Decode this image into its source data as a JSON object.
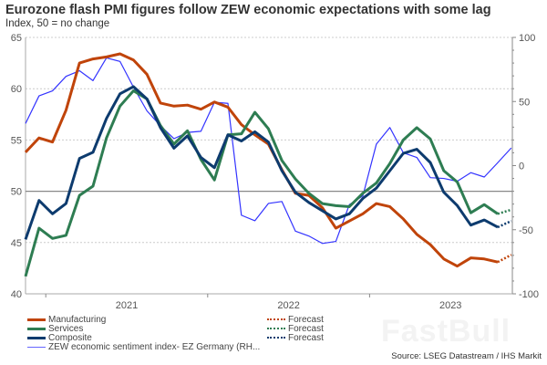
{
  "chart_data": {
    "type": "line",
    "title": "Eurozone flash PMI figures follow ZEW economic expectations with some lag",
    "subtitle": "Index, 50 = no change",
    "x": [
      "2020-11",
      "2020-12",
      "2021-01",
      "2021-02",
      "2021-03",
      "2021-04",
      "2021-05",
      "2021-06",
      "2021-07",
      "2021-08",
      "2021-09",
      "2021-10",
      "2021-11",
      "2021-12",
      "2022-01",
      "2022-02",
      "2022-03",
      "2022-04",
      "2022-05",
      "2022-06",
      "2022-07",
      "2022-08",
      "2022-09",
      "2022-10",
      "2022-11",
      "2022-12",
      "2023-01",
      "2023-02",
      "2023-03",
      "2023-04",
      "2023-05",
      "2023-06",
      "2023-07",
      "2023-08",
      "2023-09",
      "2023-10",
      "2023-11"
    ],
    "x_tick_labels": [
      "2021",
      "2022",
      "2023"
    ],
    "y_left": {
      "range": [
        40,
        65
      ],
      "ticks": [
        40,
        45,
        50,
        55,
        60,
        65
      ]
    },
    "y_right": {
      "range": [
        -100,
        100
      ],
      "ticks": [
        -100,
        -50,
        0,
        50,
        100
      ]
    },
    "grid": true,
    "reference_line": 50,
    "legend_placement": "bottom",
    "series": [
      {
        "name": "Manufacturing",
        "axis": "left",
        "color": "#c0440a",
        "values": [
          53.8,
          55.2,
          54.8,
          57.9,
          62.5,
          62.9,
          63.1,
          63.4,
          62.8,
          61.4,
          58.6,
          58.3,
          58.4,
          58.0,
          58.7,
          58.2,
          56.5,
          55.5,
          54.6,
          52.1,
          49.8,
          49.6,
          48.4,
          46.4,
          47.1,
          47.8,
          48.8,
          48.5,
          47.3,
          45.8,
          44.8,
          43.4,
          42.7,
          43.5,
          43.4,
          43.1,
          null
        ],
        "forecast": {
          "name": "Forecast",
          "from": "2023-10",
          "values": [
            43.1,
            43.8
          ]
        }
      },
      {
        "name": "Services",
        "axis": "left",
        "color": "#2e7d52",
        "values": [
          41.7,
          46.4,
          45.4,
          45.7,
          49.6,
          50.5,
          55.2,
          58.3,
          59.8,
          59.0,
          56.4,
          54.6,
          55.9,
          53.1,
          51.1,
          55.5,
          55.6,
          57.7,
          56.1,
          53.0,
          51.2,
          49.8,
          48.8,
          48.6,
          48.5,
          49.8,
          50.8,
          52.7,
          55.0,
          56.2,
          55.1,
          52.0,
          50.9,
          47.9,
          48.7,
          47.8,
          null
        ],
        "forecast": {
          "name": "Forecast",
          "from": "2023-10",
          "values": [
            47.8,
            48.2
          ]
        }
      },
      {
        "name": "Composite",
        "axis": "left",
        "color": "#0d3b6e",
        "values": [
          45.3,
          49.1,
          47.8,
          48.8,
          53.2,
          53.8,
          57.1,
          59.5,
          60.2,
          59.0,
          56.2,
          54.2,
          55.4,
          53.3,
          52.3,
          55.5,
          54.9,
          55.8,
          54.8,
          52.0,
          49.9,
          48.9,
          48.1,
          47.3,
          47.8,
          49.3,
          50.3,
          52.0,
          53.7,
          54.1,
          52.8,
          49.9,
          48.6,
          46.7,
          47.2,
          46.5,
          null
        ],
        "forecast": {
          "name": "Forecast",
          "from": "2023-10",
          "values": [
            46.5,
            47.1
          ]
        }
      },
      {
        "name": "ZEW economic sentiment index- EZ Germany (RH...",
        "axis": "right",
        "color": "#3333ff",
        "values": [
          32.8,
          54.4,
          58.3,
          69.6,
          74.0,
          66.3,
          84.0,
          81.3,
          61.2,
          42.7,
          31.1,
          21.0,
          25.9,
          26.8,
          49.4,
          48.6,
          -38.7,
          -43.0,
          -29.5,
          -28.0,
          -51.1,
          -54.9,
          -60.7,
          -59.1,
          -30.4,
          -23.6,
          16.7,
          29.7,
          10.0,
          6.4,
          -9.4,
          -10.0,
          -12.2,
          -5.5,
          -8.9,
          2.3,
          13.8
        ]
      }
    ]
  },
  "source": "Source: LSEG Datastream / IHS Markit",
  "watermark": "FastBull"
}
